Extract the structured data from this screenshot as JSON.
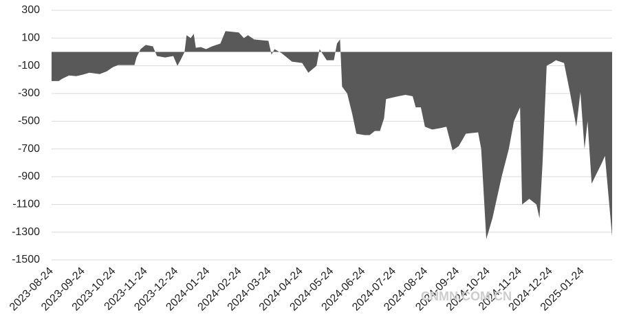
{
  "chart_data": {
    "type": "area",
    "watermark": "CNMN.COM.CN",
    "color": "#595959",
    "grid": true,
    "x": [
      "2023-08-24",
      "2023-08-31",
      "2023-09-03",
      "2023-09-10",
      "2023-09-17",
      "2023-09-23",
      "2023-09-30",
      "2023-10-10",
      "2023-10-17",
      "2023-10-23",
      "2023-10-28",
      "2023-11-03",
      "2023-11-13",
      "2023-11-15",
      "2023-11-19",
      "2023-11-24",
      "2023-12-01",
      "2023-12-05",
      "2023-12-13",
      "2023-12-21",
      "2023-12-25",
      "2023-12-28",
      "2024-01-01",
      "2024-01-03",
      "2024-01-07",
      "2024-01-10",
      "2024-01-12",
      "2024-01-17",
      "2024-01-22",
      "2024-01-28",
      "2024-02-05",
      "2024-02-10",
      "2024-02-23",
      "2024-02-28",
      "2024-03-03",
      "2024-03-09",
      "2024-03-23",
      "2024-03-26",
      "2024-03-29",
      "2024-04-05",
      "2024-04-15",
      "2024-04-25",
      "2024-05-01",
      "2024-05-09",
      "2024-05-12",
      "2024-05-19",
      "2024-05-26",
      "2024-05-29",
      "2024-06-01",
      "2024-06-03",
      "2024-06-08",
      "2024-06-13",
      "2024-06-17",
      "2024-06-25",
      "2024-06-30",
      "2024-07-05",
      "2024-07-10",
      "2024-07-14",
      "2024-07-16",
      "2024-07-22",
      "2024-07-28",
      "2024-08-04",
      "2024-08-11",
      "2024-08-14",
      "2024-08-19",
      "2024-08-23",
      "2024-08-30",
      "2024-09-07",
      "2024-09-13",
      "2024-09-19",
      "2024-09-25",
      "2024-10-02",
      "2024-10-14",
      "2024-10-17",
      "2024-10-22",
      "2024-10-28",
      "2024-11-06",
      "2024-11-13",
      "2024-11-18",
      "2024-11-21",
      "2024-11-24",
      "2024-11-26",
      "2024-12-03",
      "2024-12-10",
      "2024-12-13",
      "2024-12-16",
      "2024-12-20",
      "2024-12-25",
      "2024-12-29",
      "2025-01-06",
      "2025-01-12",
      "2025-01-18",
      "2025-01-22",
      "2025-01-26",
      "2025-01-29",
      "2025-02-02",
      "2025-02-12",
      "2025-02-15",
      "2025-02-18",
      "2025-02-22"
    ],
    "values": [
      -210,
      -210,
      -195,
      -170,
      -175,
      -165,
      -150,
      -160,
      -140,
      -110,
      -95,
      -95,
      -95,
      -40,
      20,
      50,
      40,
      -30,
      -40,
      -30,
      -100,
      -60,
      0,
      120,
      100,
      130,
      30,
      35,
      20,
      40,
      60,
      150,
      140,
      100,
      120,
      90,
      80,
      -20,
      20,
      -10,
      -70,
      -80,
      -150,
      -100,
      20,
      -60,
      -60,
      60,
      90,
      -250,
      -300,
      -450,
      -590,
      -600,
      -600,
      -570,
      -570,
      -480,
      -340,
      -330,
      -320,
      -310,
      -320,
      -400,
      -400,
      -540,
      -560,
      -550,
      -540,
      -710,
      -680,
      -590,
      -580,
      -700,
      -1350,
      -1200,
      -900,
      -700,
      -500,
      -450,
      -400,
      -1100,
      -1060,
      -1100,
      -1200,
      -800,
      -100,
      -80,
      -60,
      -80,
      -300,
      -540,
      -290,
      -700,
      -500,
      -950,
      -800,
      -750,
      -1000,
      -1330
    ],
    "xlim": [
      "2023-08-24",
      "2025-02-22"
    ],
    "xticks": [
      "2023-08-24",
      "2023-09-24",
      "2023-10-24",
      "2023-11-24",
      "2023-12-24",
      "2024-01-24",
      "2024-02-24",
      "2024-03-24",
      "2024-04-24",
      "2024-05-24",
      "2024-06-24",
      "2024-07-24",
      "2024-08-24",
      "2024-09-24",
      "2024-10-24",
      "2024-11-24",
      "2024-12-24",
      "2025-01-24"
    ],
    "ylim": [
      -1500,
      300
    ],
    "yticks": [
      300,
      100,
      -100,
      -300,
      -500,
      -700,
      -900,
      -1100,
      -1300,
      -1500
    ]
  }
}
